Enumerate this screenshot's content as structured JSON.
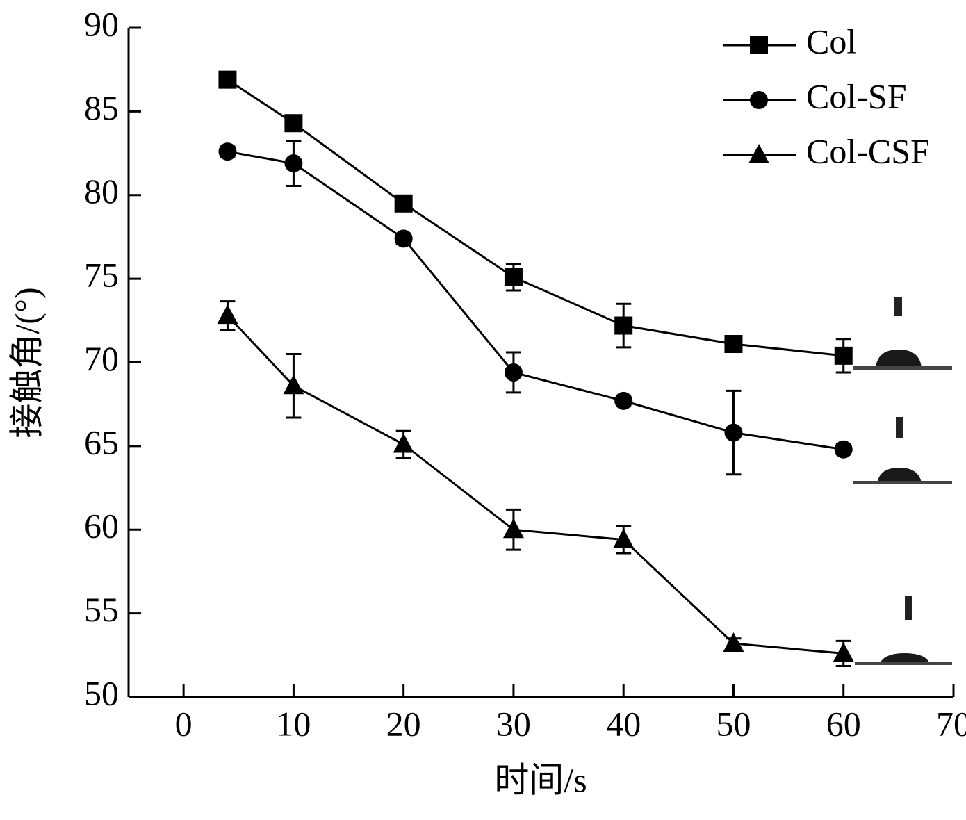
{
  "chart_data": {
    "type": "line",
    "x_label": "时间/s",
    "y_label": "接触角/(°)",
    "xlim": [
      -5,
      70
    ],
    "xticks": [
      0,
      10,
      20,
      30,
      40,
      50,
      60,
      70
    ],
    "ylim": [
      50,
      90
    ],
    "yticks": [
      50,
      55,
      60,
      65,
      70,
      75,
      80,
      85,
      90
    ],
    "legend": "top-right",
    "x": [
      4,
      10,
      20,
      30,
      40,
      50,
      60
    ],
    "series": [
      {
        "name": "Col",
        "color": "#000000",
        "marker": "square",
        "values": [
          86.9,
          84.3,
          79.5,
          75.1,
          72.2,
          71.1,
          70.4
        ],
        "errors": [
          0.3,
          0.3,
          0.3,
          0.8,
          1.3,
          0.3,
          1.0
        ]
      },
      {
        "name": "Col-SF",
        "color": "#000000",
        "marker": "circle",
        "values": [
          82.6,
          81.9,
          77.4,
          69.4,
          67.7,
          65.8,
          64.8
        ],
        "errors": [
          0.3,
          1.35,
          0.3,
          1.2,
          0.3,
          2.5,
          0.3
        ]
      },
      {
        "name": "Col-CSF",
        "color": "#000000",
        "marker": "triangle",
        "values": [
          72.8,
          68.6,
          65.1,
          60.0,
          59.4,
          53.2,
          52.6
        ],
        "errors": [
          0.85,
          1.9,
          0.8,
          1.2,
          0.8,
          0.3,
          0.75
        ]
      }
    ]
  }
}
